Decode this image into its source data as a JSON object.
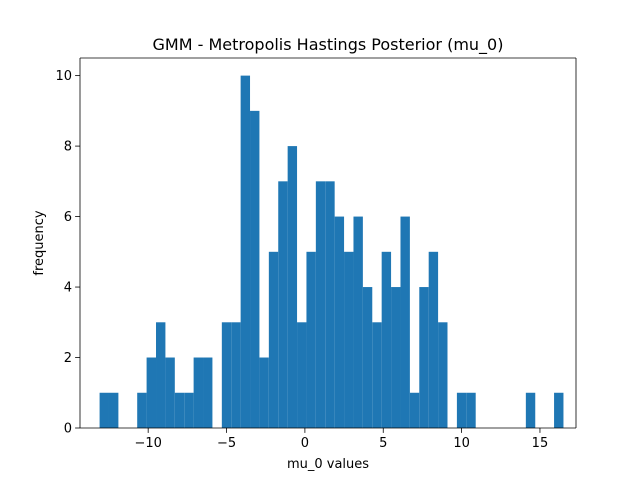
{
  "chart_data": {
    "type": "bar",
    "title": "GMM - Metropolis Hastings Posterior (mu_0)",
    "xlabel": "mu_0 values",
    "ylabel": "frequency",
    "xlim": [
      -14.35,
      17.3
    ],
    "ylim": [
      0,
      10.5
    ],
    "bin_width": 0.6,
    "bar_color": "#1f77b4",
    "x_ticks": [
      -10,
      -5,
      0,
      5,
      10,
      15
    ],
    "x_tick_labels": [
      "−10",
      "−5",
      "0",
      "5",
      "10",
      "15"
    ],
    "y_ticks": [
      0,
      2,
      4,
      6,
      8,
      10
    ],
    "y_tick_labels": [
      "0",
      "2",
      "4",
      "6",
      "8",
      "10"
    ],
    "bins": [
      {
        "x": -13.1,
        "count": 1
      },
      {
        "x": -12.5,
        "count": 1
      },
      {
        "x": -11.9,
        "count": 0
      },
      {
        "x": -11.3,
        "count": 0
      },
      {
        "x": -10.7,
        "count": 1
      },
      {
        "x": -10.1,
        "count": 2
      },
      {
        "x": -9.5,
        "count": 3
      },
      {
        "x": -8.9,
        "count": 2
      },
      {
        "x": -8.3,
        "count": 1
      },
      {
        "x": -7.7,
        "count": 1
      },
      {
        "x": -7.1,
        "count": 2
      },
      {
        "x": -6.5,
        "count": 2
      },
      {
        "x": -5.9,
        "count": 0
      },
      {
        "x": -5.3,
        "count": 3
      },
      {
        "x": -4.7,
        "count": 3
      },
      {
        "x": -4.1,
        "count": 10
      },
      {
        "x": -3.5,
        "count": 9
      },
      {
        "x": -2.9,
        "count": 2
      },
      {
        "x": -2.3,
        "count": 5
      },
      {
        "x": -1.7,
        "count": 7
      },
      {
        "x": -1.1,
        "count": 8
      },
      {
        "x": -0.5,
        "count": 3
      },
      {
        "x": 0.1,
        "count": 5
      },
      {
        "x": 0.7,
        "count": 7
      },
      {
        "x": 1.3,
        "count": 7
      },
      {
        "x": 1.9,
        "count": 6
      },
      {
        "x": 2.5,
        "count": 5
      },
      {
        "x": 3.1,
        "count": 6
      },
      {
        "x": 3.7,
        "count": 4
      },
      {
        "x": 4.3,
        "count": 3
      },
      {
        "x": 4.9,
        "count": 5
      },
      {
        "x": 5.5,
        "count": 4
      },
      {
        "x": 6.1,
        "count": 6
      },
      {
        "x": 6.7,
        "count": 1
      },
      {
        "x": 7.3,
        "count": 4
      },
      {
        "x": 7.9,
        "count": 5
      },
      {
        "x": 8.5,
        "count": 3
      },
      {
        "x": 9.1,
        "count": 0
      },
      {
        "x": 9.7,
        "count": 1
      },
      {
        "x": 10.3,
        "count": 1
      },
      {
        "x": 14.1,
        "count": 1
      },
      {
        "x": 15.9,
        "count": 1
      }
    ]
  }
}
